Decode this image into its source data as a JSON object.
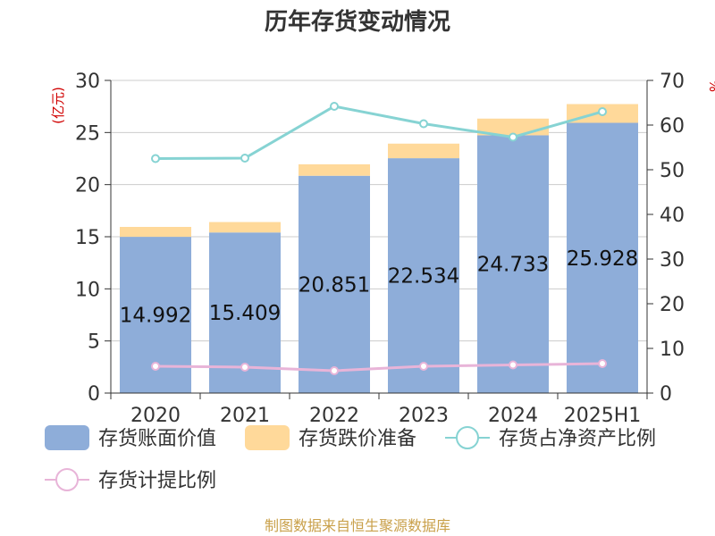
{
  "chart_data": {
    "type": "bar",
    "title": "历年存货变动情况",
    "categories": [
      "2020",
      "2021",
      "2022",
      "2023",
      "2024",
      "2025H1"
    ],
    "left_axis": {
      "unit_label": "(亿元)",
      "ylim": [
        0,
        30
      ],
      "ticks": [
        0,
        5,
        10,
        15,
        20,
        25,
        30
      ]
    },
    "right_axis": {
      "unit_label": "%",
      "ylim": [
        0,
        70
      ],
      "ticks": [
        0,
        10,
        20,
        30,
        40,
        50,
        60,
        70
      ]
    },
    "grid": true,
    "legend_position": "bottom",
    "series": [
      {
        "name": "存货账面价值",
        "kind": "bar",
        "stack": "inv",
        "axis": "left",
        "color": "#8eadd9",
        "values": [
          14.992,
          15.409,
          20.851,
          22.534,
          24.733,
          25.928
        ],
        "data_labels": [
          "14.992",
          "15.409",
          "20.851",
          "22.534",
          "24.733",
          "25.928"
        ]
      },
      {
        "name": "存货跌价准备",
        "kind": "bar",
        "stack": "inv",
        "axis": "left",
        "color": "#ffd99a",
        "values": [
          0.95,
          1.0,
          1.1,
          1.4,
          1.6,
          1.8
        ]
      },
      {
        "name": "存货占净资产比例",
        "kind": "line",
        "axis": "right",
        "color": "#86d3d3",
        "values": [
          52.5,
          52.6,
          64.2,
          60.3,
          57.3,
          63.0
        ]
      },
      {
        "name": "存货计提比例",
        "kind": "line",
        "axis": "right",
        "color": "#e8b4d8",
        "values": [
          6.0,
          5.8,
          5.0,
          6.0,
          6.3,
          6.6
        ]
      }
    ]
  },
  "footer": {
    "source": "制图数据来自恒生聚源数据库"
  }
}
